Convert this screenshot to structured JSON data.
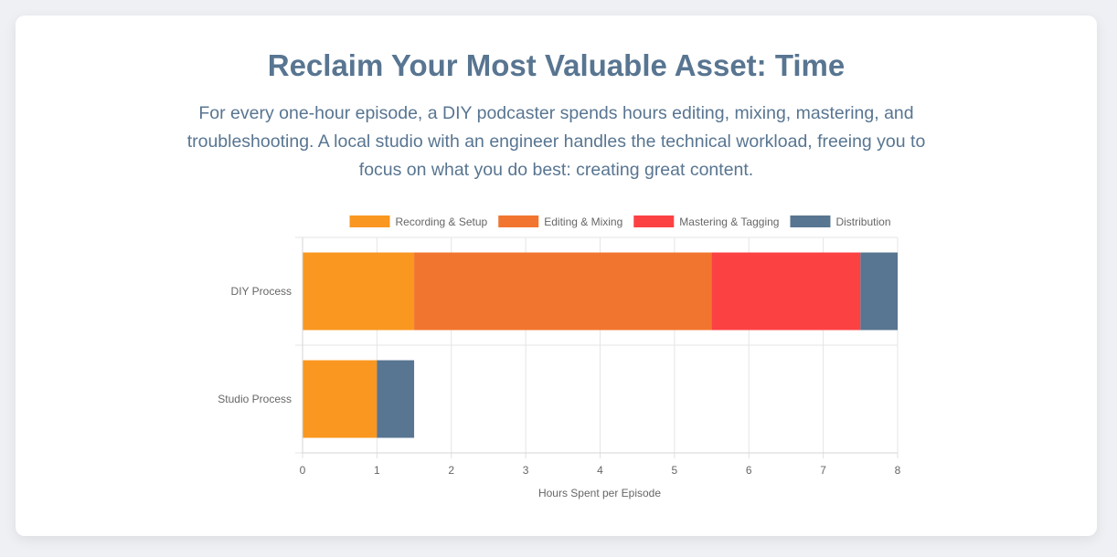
{
  "header": {
    "title": "Reclaim Your Most Valuable Asset: Time",
    "description": "For every one-hour episode, a DIY podcaster spends hours editing, mixing, mastering, and troubleshooting. A local studio with an engineer handles the technical workload, freeing you to focus on what you do best: creating great content."
  },
  "chart_data": {
    "type": "bar",
    "orientation": "horizontal",
    "stacked": true,
    "categories": [
      "DIY Process",
      "Studio Process"
    ],
    "series": [
      {
        "name": "Recording & Setup",
        "color": "#f99720",
        "values": [
          1.5,
          1
        ]
      },
      {
        "name": "Editing & Mixing",
        "color": "#f2752f",
        "values": [
          4,
          0
        ]
      },
      {
        "name": "Mastering & Tagging",
        "color": "#fc4143",
        "values": [
          2,
          0
        ]
      },
      {
        "name": "Distribution",
        "color": "#587591",
        "values": [
          0.5,
          0.5
        ]
      }
    ],
    "xlabel": "Hours Spent per Episode",
    "ylabel": "",
    "xlim": [
      0,
      8
    ],
    "xticks": [
      "0",
      "1",
      "2",
      "3",
      "4",
      "5",
      "6",
      "7",
      "8"
    ],
    "grid": true,
    "legend_position": "top"
  }
}
